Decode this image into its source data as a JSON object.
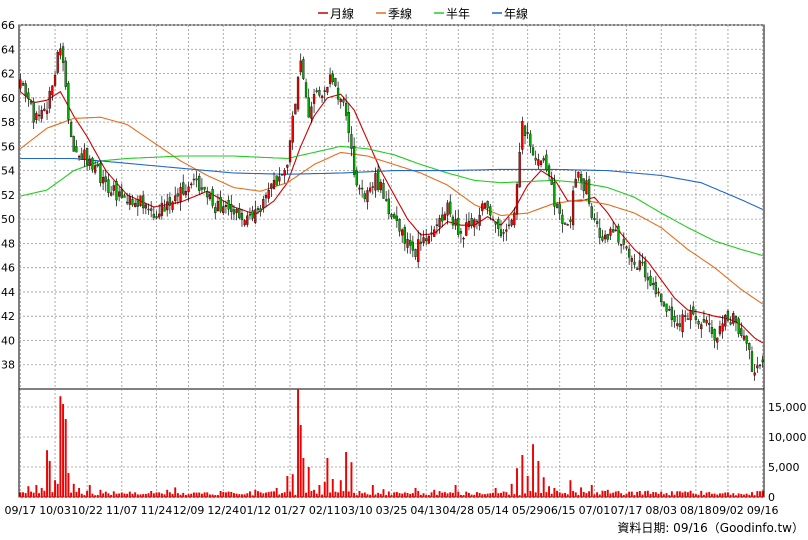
{
  "chart_data": [
    {
      "type": "candlestick",
      "legend": {
        "placement": "top-center",
        "items": [
          {
            "name": "月線",
            "color": "#cc0000"
          },
          {
            "name": "季線",
            "color": "#e07020"
          },
          {
            "name": "半年",
            "color": "#22cc22"
          },
          {
            "name": "年線",
            "color": "#2266cc"
          }
        ]
      },
      "up_color": "#ee0000",
      "down_color": "#00aa00",
      "ylim": [
        36,
        66
      ],
      "y_ticks": [
        38,
        40,
        42,
        44,
        46,
        48,
        50,
        52,
        54,
        56,
        58,
        60,
        62,
        64,
        66
      ],
      "y_ticks_side": "left",
      "grid": true,
      "x_tick_labels": [
        "09/17",
        "10/03",
        "10/22",
        "11/07",
        "11/24",
        "12/09",
        "12/24",
        "01/12",
        "01/27",
        "02/11",
        "03/10",
        "03/25",
        "04/13",
        "04/28",
        "05/14",
        "05/29",
        "06/15",
        "07/01",
        "07/17",
        "08/03",
        "08/18",
        "09/02",
        "09/16"
      ],
      "close_anchors": [
        [
          0,
          61.2
        ],
        [
          5,
          58.5
        ],
        [
          10,
          59.5
        ],
        [
          15,
          64.5
        ],
        [
          17,
          60.5
        ],
        [
          20,
          55.5
        ],
        [
          25,
          55.0
        ],
        [
          32,
          53.0
        ],
        [
          38,
          51.8
        ],
        [
          45,
          51.5
        ],
        [
          50,
          50.5
        ],
        [
          58,
          52.0
        ],
        [
          65,
          53.0
        ],
        [
          72,
          51.2
        ],
        [
          80,
          50.6
        ],
        [
          85,
          50.2
        ],
        [
          90,
          50.5
        ],
        [
          95,
          53.0
        ],
        [
          100,
          54.0
        ],
        [
          103,
          60.0
        ],
        [
          105,
          62.5
        ],
        [
          108,
          59.0
        ],
        [
          112,
          60.5
        ],
        [
          116,
          61.5
        ],
        [
          120,
          60.0
        ],
        [
          123,
          57.5
        ],
        [
          125,
          54.0
        ],
        [
          128,
          52.0
        ],
        [
          133,
          53.5
        ],
        [
          138,
          51.0
        ],
        [
          141,
          50.0
        ],
        [
          144,
          48.5
        ],
        [
          148,
          47.5
        ],
        [
          152,
          48.8
        ],
        [
          156,
          50.0
        ],
        [
          160,
          50.8
        ],
        [
          165,
          48.5
        ],
        [
          170,
          50.0
        ],
        [
          174,
          51.0
        ],
        [
          178,
          49.0
        ],
        [
          182,
          48.5
        ],
        [
          185,
          50.5
        ],
        [
          188,
          57.5
        ],
        [
          191,
          56.0
        ],
        [
          195,
          55.0
        ],
        [
          198,
          53.5
        ],
        [
          200,
          51.5
        ],
        [
          203,
          49.0
        ],
        [
          206,
          50.0
        ],
        [
          208,
          53.5
        ],
        [
          212,
          52.8
        ],
        [
          215,
          49.5
        ],
        [
          218,
          48.0
        ],
        [
          222,
          48.8
        ],
        [
          226,
          48.0
        ],
        [
          230,
          46.5
        ],
        [
          234,
          45.5
        ],
        [
          238,
          44.0
        ],
        [
          242,
          42.5
        ],
        [
          246,
          41.0
        ],
        [
          249,
          42.5
        ],
        [
          253,
          42.0
        ],
        [
          256,
          41.5
        ],
        [
          259,
          40.5
        ],
        [
          262,
          40.8
        ],
        [
          264,
          41.5
        ],
        [
          267,
          41.6
        ],
        [
          270,
          41.0
        ],
        [
          272,
          40.0
        ],
        [
          274,
          38.0
        ],
        [
          276,
          37.6
        ],
        [
          277,
          37.8
        ]
      ],
      "moving_averages": [
        {
          "name": "月線",
          "points": [
            [
              0,
              60.5
            ],
            [
              5,
              59.6
            ],
            [
              10,
              59.8
            ],
            [
              15,
              60.5
            ],
            [
              20,
              58.5
            ],
            [
              25,
              56.8
            ],
            [
              32,
              54.0
            ],
            [
              40,
              52.0
            ],
            [
              50,
              51.0
            ],
            [
              60,
              51.4
            ],
            [
              70,
              52.3
            ],
            [
              80,
              51.0
            ],
            [
              88,
              50.4
            ],
            [
              95,
              51.5
            ],
            [
              100,
              53.0
            ],
            [
              105,
              56.0
            ],
            [
              110,
              58.5
            ],
            [
              115,
              60.0
            ],
            [
              120,
              60.3
            ],
            [
              125,
              59.0
            ],
            [
              130,
              56.5
            ],
            [
              135,
              54.0
            ],
            [
              140,
              52.0
            ],
            [
              145,
              50.0
            ],
            [
              150,
              48.7
            ],
            [
              155,
              48.8
            ],
            [
              160,
              49.8
            ],
            [
              165,
              49.5
            ],
            [
              170,
              49.5
            ],
            [
              175,
              50.2
            ],
            [
              180,
              49.5
            ],
            [
              185,
              50.8
            ],
            [
              190,
              52.8
            ],
            [
              195,
              54.0
            ],
            [
              200,
              53.3
            ],
            [
              205,
              51.5
            ],
            [
              210,
              51.5
            ],
            [
              215,
              51.8
            ],
            [
              220,
              50.5
            ],
            [
              225,
              48.8
            ],
            [
              230,
              47.5
            ],
            [
              235,
              46.5
            ],
            [
              240,
              45.0
            ],
            [
              245,
              43.5
            ],
            [
              250,
              42.5
            ],
            [
              255,
              42.3
            ],
            [
              260,
              42.0
            ],
            [
              265,
              41.8
            ],
            [
              270,
              41.3
            ],
            [
              275,
              40.2
            ],
            [
              278,
              39.8
            ]
          ]
        },
        {
          "name": "季線",
          "points": [
            [
              0,
              55.8
            ],
            [
              10,
              57.5
            ],
            [
              20,
              58.3
            ],
            [
              30,
              58.4
            ],
            [
              40,
              57.8
            ],
            [
              50,
              56.3
            ],
            [
              60,
              54.8
            ],
            [
              70,
              53.6
            ],
            [
              80,
              52.6
            ],
            [
              90,
              52.3
            ],
            [
              100,
              53.0
            ],
            [
              110,
              54.5
            ],
            [
              120,
              55.5
            ],
            [
              130,
              55.2
            ],
            [
              140,
              54.5
            ],
            [
              150,
              53.8
            ],
            [
              160,
              52.8
            ],
            [
              170,
              51.2
            ],
            [
              180,
              50.3
            ],
            [
              190,
              50.5
            ],
            [
              200,
              51.3
            ],
            [
              210,
              51.6
            ],
            [
              220,
              51.2
            ],
            [
              230,
              50.5
            ],
            [
              240,
              49.3
            ],
            [
              250,
              47.5
            ],
            [
              260,
              46.0
            ],
            [
              270,
              44.2
            ],
            [
              278,
              43.0
            ]
          ]
        },
        {
          "name": "半年",
          "points": [
            [
              0,
              51.9
            ],
            [
              10,
              52.4
            ],
            [
              20,
              54.0
            ],
            [
              30,
              54.8
            ],
            [
              40,
              55.0
            ],
            [
              50,
              55.1
            ],
            [
              60,
              55.2
            ],
            [
              70,
              55.2
            ],
            [
              80,
              55.2
            ],
            [
              90,
              55.1
            ],
            [
              100,
              55.0
            ],
            [
              110,
              55.5
            ],
            [
              120,
              56.0
            ],
            [
              130,
              55.8
            ],
            [
              140,
              55.3
            ],
            [
              150,
              54.5
            ],
            [
              160,
              53.8
            ],
            [
              170,
              53.2
            ],
            [
              180,
              53.0
            ],
            [
              190,
              53.1
            ],
            [
              200,
              53.2
            ],
            [
              210,
              53.0
            ],
            [
              220,
              52.6
            ],
            [
              230,
              51.8
            ],
            [
              240,
              50.5
            ],
            [
              250,
              49.3
            ],
            [
              260,
              48.2
            ],
            [
              270,
              47.5
            ],
            [
              278,
              47.0
            ]
          ]
        },
        {
          "name": "年線",
          "points": [
            [
              0,
              55.0
            ],
            [
              20,
              55.0
            ],
            [
              40,
              54.6
            ],
            [
              60,
              54.2
            ],
            [
              80,
              53.8
            ],
            [
              100,
              53.7
            ],
            [
              120,
              53.8
            ],
            [
              140,
              54.0
            ],
            [
              160,
              54.0
            ],
            [
              180,
              54.1
            ],
            [
              200,
              54.1
            ],
            [
              220,
              54.0
            ],
            [
              240,
              53.6
            ],
            [
              255,
              53.0
            ],
            [
              270,
              51.6
            ],
            [
              278,
              50.8
            ]
          ]
        }
      ],
      "n_days": 279
    },
    {
      "type": "bar",
      "name": "volume",
      "color": "#ee0000",
      "ylim": [
        0,
        18000
      ],
      "y_ticks": [
        0,
        5000,
        10000,
        15000
      ],
      "y_tick_labels": [
        "0",
        "5,000",
        "10,000",
        "15,000"
      ],
      "y_ticks_side": "right",
      "grid": true,
      "base_volume": 700,
      "spikes": [
        [
          3,
          1800
        ],
        [
          6,
          2000
        ],
        [
          8,
          1500
        ],
        [
          10,
          7800
        ],
        [
          11,
          6000
        ],
        [
          13,
          2800
        ],
        [
          14,
          2200
        ],
        [
          15,
          16800
        ],
        [
          16,
          15500
        ],
        [
          17,
          13000
        ],
        [
          18,
          4000
        ],
        [
          20,
          2200
        ],
        [
          22,
          1500
        ],
        [
          26,
          2000
        ],
        [
          30,
          1200
        ],
        [
          55,
          1200
        ],
        [
          58,
          1600
        ],
        [
          75,
          1000
        ],
        [
          88,
          1200
        ],
        [
          96,
          1500
        ],
        [
          100,
          3500
        ],
        [
          102,
          3800
        ],
        [
          104,
          18000
        ],
        [
          105,
          12000
        ],
        [
          106,
          6500
        ],
        [
          108,
          5000
        ],
        [
          110,
          1200
        ],
        [
          112,
          2000
        ],
        [
          114,
          2500
        ],
        [
          115,
          6500
        ],
        [
          117,
          3000
        ],
        [
          120,
          2800
        ],
        [
          122,
          7500
        ],
        [
          124,
          5800
        ],
        [
          132,
          2000
        ],
        [
          136,
          1300
        ],
        [
          148,
          1500
        ],
        [
          155,
          1200
        ],
        [
          163,
          2000
        ],
        [
          178,
          1500
        ],
        [
          184,
          2200
        ],
        [
          186,
          4800
        ],
        [
          188,
          7000
        ],
        [
          190,
          3500
        ],
        [
          192,
          8800
        ],
        [
          194,
          6000
        ],
        [
          196,
          3300
        ],
        [
          198,
          1800
        ],
        [
          200,
          1500
        ],
        [
          206,
          2800
        ],
        [
          210,
          1600
        ],
        [
          214,
          2000
        ],
        [
          220,
          1200
        ],
        [
          232,
          1000
        ],
        [
          240,
          900
        ],
        [
          250,
          800
        ],
        [
          262,
          600
        ],
        [
          270,
          500
        ],
        [
          275,
          300
        ]
      ]
    }
  ],
  "source_note": "資料日期: 09/16（Goodinfo.tw）"
}
